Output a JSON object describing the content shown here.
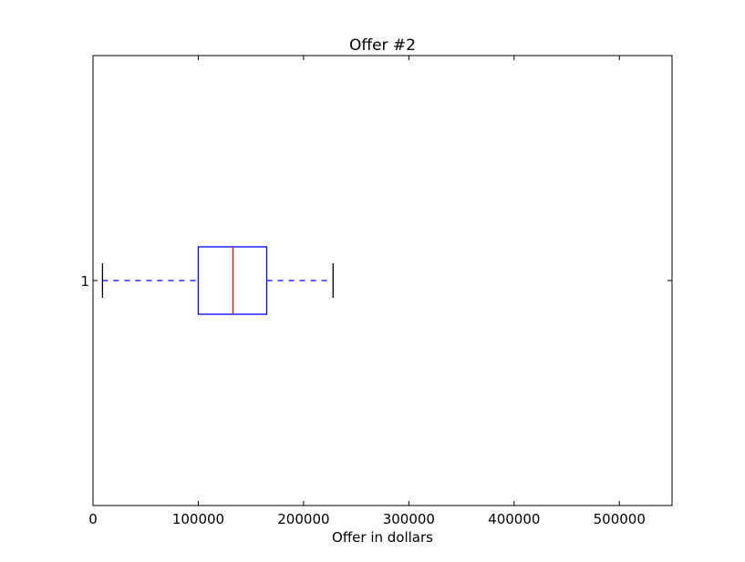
{
  "chart_data": {
    "type": "boxplot",
    "title": "Offer #2",
    "xlabel": "Offer in dollars",
    "ylabel": "",
    "orientation": "horizontal",
    "xlim": [
      0,
      550000
    ],
    "x_ticks": [
      0,
      100000,
      200000,
      300000,
      400000,
      500000
    ],
    "x_tick_labels": [
      "0",
      "100000",
      "200000",
      "300000",
      "400000",
      "500000"
    ],
    "categories": [
      "1"
    ],
    "boxes": [
      {
        "label": "1",
        "whisker_low": 9000,
        "q1": 100000,
        "median": 133000,
        "q3": 165000,
        "whisker_high": 228000
      }
    ],
    "grid": false,
    "legend": "none",
    "colors": {
      "box": "#0000ff",
      "median": "#ff0000",
      "whisker": "#0000ff",
      "cap": "#000000",
      "axes": "#000000"
    }
  }
}
